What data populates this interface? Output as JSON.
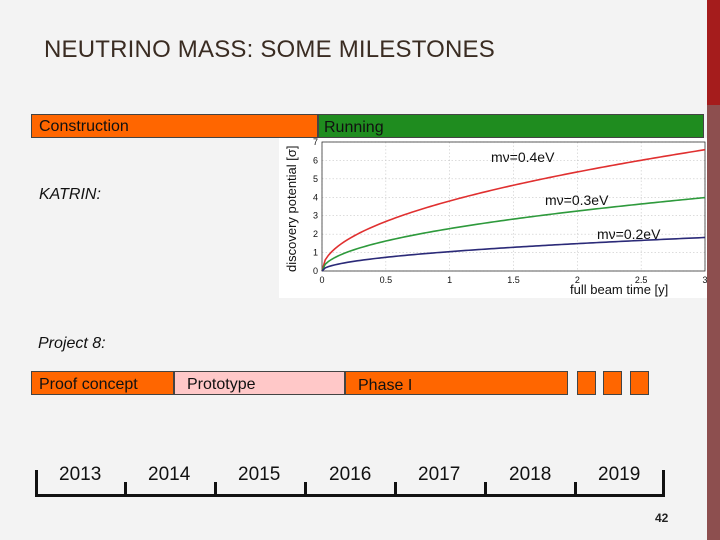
{
  "title": "NEUTRINO MASS: SOME MILESTONES",
  "katrin": {
    "label": "KATRIN:",
    "construction_label": "Construction",
    "running_label": "Running",
    "construction_color": "#ff6600",
    "running_color": "#1f8c1f"
  },
  "project8": {
    "label": "Project 8:",
    "proof_label": "Proof concept",
    "prototype_label": "Prototype",
    "phase1_label": "Phase I",
    "orange": "#ff6600",
    "pink": "#ffc8c8"
  },
  "timeline": {
    "years": [
      "2013",
      "2014",
      "2015",
      "2016",
      "2017",
      "2018",
      "2019"
    ]
  },
  "page_number": "42",
  "chart_data": {
    "type": "line",
    "ylabel": "discovery potential [σ]",
    "xlabel": "full beam time [y]",
    "xlim": [
      0,
      3
    ],
    "ylim": [
      0,
      7
    ],
    "x_ticks": [
      "0",
      "0.5",
      "1",
      "1.5",
      "2",
      "2.5",
      "3"
    ],
    "y_ticks": [
      "0",
      "1",
      "2",
      "3",
      "4",
      "5",
      "6",
      "7"
    ],
    "grid": true,
    "series": [
      {
        "name": "mν=0.4eV",
        "color": "#e03030",
        "coef": 3.8
      },
      {
        "name": "mν=0.3eV",
        "color": "#2e9a3c",
        "coef": 2.3
      },
      {
        "name": "mν=0.2eV",
        "color": "#2b2a78",
        "coef": 1.05
      }
    ]
  }
}
